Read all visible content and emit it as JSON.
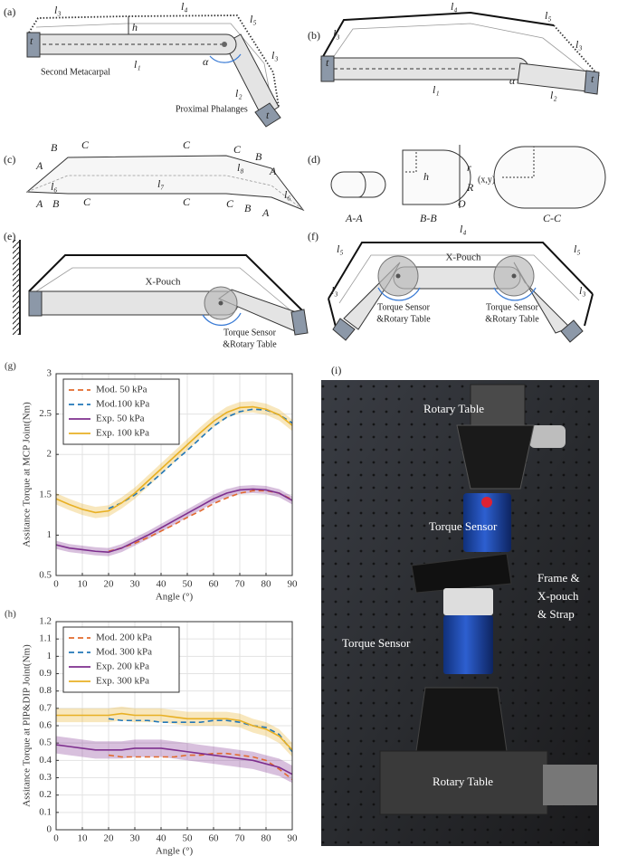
{
  "panels": {
    "a": {
      "texts": [
        "(a)",
        "l₃",
        "l₄",
        "h",
        "l₅",
        "t",
        "l₁",
        "α",
        "l₃",
        "l₂",
        "t",
        "Second Metacarpal",
        "Proximal Phalanges"
      ]
    },
    "b": {
      "texts": [
        "(b)",
        "l₄",
        "l₅",
        "l₃",
        "l₃",
        "t",
        "t",
        "l₁",
        "α",
        "l₂"
      ]
    },
    "c": {
      "texts": [
        "(c)",
        "B",
        "C",
        "C",
        "C",
        "B",
        "A",
        "A",
        "l₆",
        "l₇",
        "l₈",
        "A",
        "B",
        "C",
        "C",
        "C",
        "B",
        "A",
        "l₆"
      ]
    },
    "d": {
      "texts": [
        "(d)",
        "A-A",
        "B-B",
        "C-C",
        "h",
        "r",
        "(x,y)",
        "R",
        "O"
      ]
    },
    "e": {
      "texts": [
        "(e)",
        "X-Pouch",
        "Torque Sensor",
        "&Rotary Table"
      ]
    },
    "f": {
      "texts": [
        "(f)",
        "l₄",
        "l₅",
        "l₅",
        "X-Pouch",
        "l₃",
        "l₃",
        "Torque Sensor",
        "&Rotary Table",
        "Torque Sensor",
        "&Rotary Table"
      ]
    }
  },
  "chart_data": [
    {
      "type": "line",
      "panel": "(g)",
      "x_label": "Angle (°)",
      "y_label": "Assitance Torque at MCP Joint(Nm)",
      "x": [
        0,
        5,
        10,
        15,
        20,
        25,
        30,
        35,
        40,
        45,
        50,
        55,
        60,
        65,
        70,
        75,
        80,
        85,
        90
      ],
      "xlim": [
        0,
        90
      ],
      "xticks": [
        0,
        10,
        20,
        30,
        40,
        50,
        60,
        70,
        80,
        90
      ],
      "ylim": [
        0.5,
        3
      ],
      "yticks": [
        0.5,
        1,
        1.5,
        2,
        2.5,
        3
      ],
      "grid": true,
      "legend": "upper-left",
      "series": [
        {
          "name": "Mod. 50 kPa",
          "color": "#e2692d",
          "style": "dashed",
          "values": [
            null,
            null,
            null,
            null,
            0.8,
            0.84,
            0.9,
            0.97,
            1.05,
            1.13,
            1.22,
            1.3,
            1.39,
            1.46,
            1.52,
            1.55,
            1.55,
            1.52,
            1.44
          ]
        },
        {
          "name": "Mod.100 kPa",
          "color": "#2277b8",
          "style": "dashed",
          "values": [
            null,
            null,
            null,
            null,
            1.33,
            1.4,
            1.5,
            1.62,
            1.76,
            1.91,
            2.05,
            2.2,
            2.35,
            2.46,
            2.53,
            2.56,
            2.55,
            2.49,
            2.39
          ]
        },
        {
          "name": "Exp. 50 kPa",
          "color": "#7e2f8e",
          "style": "solid",
          "values": [
            0.88,
            0.84,
            0.82,
            0.8,
            0.79,
            0.84,
            0.92,
            1.0,
            1.09,
            1.18,
            1.27,
            1.36,
            1.45,
            1.52,
            1.56,
            1.57,
            1.56,
            1.52,
            1.43
          ],
          "errors": [
            0.05,
            0.05,
            0.05,
            0.05,
            0.05,
            0.05,
            0.05,
            0.05,
            0.05,
            0.05,
            0.05,
            0.05,
            0.05,
            0.05,
            0.05,
            0.05,
            0.05,
            0.05,
            0.05
          ]
        },
        {
          "name": "Exp. 100 kPa",
          "color": "#e8b024",
          "style": "solid",
          "values": [
            1.45,
            1.38,
            1.32,
            1.28,
            1.3,
            1.4,
            1.52,
            1.67,
            1.82,
            1.97,
            2.12,
            2.27,
            2.41,
            2.52,
            2.58,
            2.59,
            2.56,
            2.49,
            2.36
          ],
          "errors": [
            0.07,
            0.07,
            0.07,
            0.07,
            0.07,
            0.07,
            0.07,
            0.07,
            0.07,
            0.07,
            0.07,
            0.07,
            0.07,
            0.07,
            0.07,
            0.07,
            0.07,
            0.07,
            0.07
          ]
        }
      ]
    },
    {
      "type": "line",
      "panel": "(h)",
      "x_label": "Angle (°)",
      "y_label": "Assitance Torque at PIP&DIP Joint(Nm)",
      "x": [
        0,
        5,
        10,
        15,
        20,
        25,
        30,
        35,
        40,
        45,
        50,
        55,
        60,
        65,
        70,
        75,
        80,
        85,
        90
      ],
      "xlim": [
        0,
        90
      ],
      "xticks": [
        0,
        10,
        20,
        30,
        40,
        50,
        60,
        70,
        80,
        90
      ],
      "ylim": [
        0,
        1.2
      ],
      "yticks": [
        0,
        0.1,
        0.2,
        0.3,
        0.4,
        0.5,
        0.6,
        0.7,
        0.8,
        0.9,
        1,
        1.1,
        1.2
      ],
      "grid": true,
      "legend": "upper-left",
      "series": [
        {
          "name": "Mod. 200 kPa",
          "color": "#e2692d",
          "style": "dashed",
          "values": [
            null,
            null,
            null,
            null,
            0.43,
            0.42,
            0.42,
            0.42,
            0.42,
            0.42,
            0.43,
            0.43,
            0.44,
            0.44,
            0.43,
            0.42,
            0.4,
            0.35,
            0.29
          ]
        },
        {
          "name": "Mod. 300 kPa",
          "color": "#2277b8",
          "style": "dashed",
          "values": [
            null,
            null,
            null,
            null,
            0.64,
            0.63,
            0.63,
            0.63,
            0.62,
            0.62,
            0.62,
            0.62,
            0.63,
            0.63,
            0.62,
            0.6,
            0.59,
            0.55,
            0.45
          ]
        },
        {
          "name": "Exp. 200 kPa",
          "color": "#7e2f8e",
          "style": "solid",
          "values": [
            0.49,
            0.48,
            0.47,
            0.46,
            0.46,
            0.46,
            0.47,
            0.47,
            0.47,
            0.46,
            0.45,
            0.44,
            0.43,
            0.42,
            0.41,
            0.4,
            0.38,
            0.36,
            0.32
          ],
          "errors": [
            0.05,
            0.05,
            0.05,
            0.05,
            0.05,
            0.05,
            0.05,
            0.05,
            0.05,
            0.05,
            0.05,
            0.05,
            0.05,
            0.05,
            0.05,
            0.05,
            0.05,
            0.05,
            0.05
          ]
        },
        {
          "name": "Exp. 300 kPa",
          "color": "#e8b024",
          "style": "solid",
          "values": [
            0.66,
            0.66,
            0.66,
            0.66,
            0.66,
            0.67,
            0.66,
            0.66,
            0.66,
            0.65,
            0.64,
            0.64,
            0.64,
            0.64,
            0.63,
            0.6,
            0.58,
            0.54,
            0.46
          ],
          "errors": [
            0.04,
            0.04,
            0.04,
            0.04,
            0.04,
            0.04,
            0.04,
            0.04,
            0.04,
            0.04,
            0.04,
            0.04,
            0.04,
            0.04,
            0.04,
            0.04,
            0.04,
            0.04,
            0.04
          ]
        }
      ]
    }
  ],
  "photo": {
    "panel": "(i)",
    "texts": [
      "Rotary Table",
      "Torque Sensor",
      "Frame &",
      "X-pouch",
      "& Strap",
      "Torque Sensor",
      "Rotary Table"
    ]
  }
}
